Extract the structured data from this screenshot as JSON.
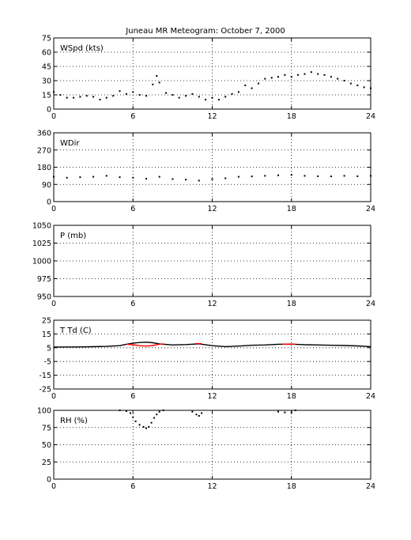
{
  "title": "Juneau MR Meteogram:    October  7, 2000",
  "chart_data": [
    {
      "type": "scatter",
      "label": "WSpd (kts)",
      "xlim": [
        0,
        24
      ],
      "ylim": [
        0,
        75
      ],
      "xticks": [
        0,
        6,
        12,
        18,
        24
      ],
      "yticks": [
        0,
        15,
        30,
        45,
        60,
        75
      ],
      "grid": true,
      "series": [
        {
          "color": "#000000",
          "points": [
            [
              0,
              18
            ],
            [
              0.5,
              15
            ],
            [
              1,
              12
            ],
            [
              1.5,
              12
            ],
            [
              2,
              13
            ],
            [
              2.5,
              14
            ],
            [
              3,
              13
            ],
            [
              3.5,
              10
            ],
            [
              4,
              12
            ],
            [
              4.5,
              14
            ],
            [
              5,
              19
            ],
            [
              5.5,
              16
            ],
            [
              6,
              18
            ],
            [
              6.5,
              15
            ],
            [
              7,
              14
            ],
            [
              7.5,
              26
            ],
            [
              7.8,
              35
            ],
            [
              8,
              28
            ],
            [
              8.5,
              17
            ],
            [
              9,
              15
            ],
            [
              9.5,
              12
            ],
            [
              10,
              14
            ],
            [
              10.5,
              16
            ],
            [
              11,
              13
            ],
            [
              11.5,
              10
            ],
            [
              12,
              12
            ],
            [
              12.5,
              10
            ],
            [
              13,
              13
            ],
            [
              13.5,
              16
            ],
            [
              14,
              18
            ],
            [
              14.5,
              25
            ],
            [
              15,
              22
            ],
            [
              15.5,
              27
            ],
            [
              16,
              32
            ],
            [
              16.5,
              33
            ],
            [
              17,
              34
            ],
            [
              17.5,
              36
            ],
            [
              18,
              34
            ],
            [
              18.5,
              36
            ],
            [
              19,
              37
            ],
            [
              19.5,
              39
            ],
            [
              20,
              37
            ],
            [
              20.5,
              36
            ],
            [
              21,
              34
            ],
            [
              21.5,
              32
            ],
            [
              22,
              30
            ],
            [
              22.5,
              27
            ],
            [
              23,
              25
            ],
            [
              23.5,
              23
            ],
            [
              24,
              22
            ]
          ]
        }
      ]
    },
    {
      "type": "scatter",
      "label": "WDir",
      "xlim": [
        0,
        24
      ],
      "ylim": [
        0,
        360
      ],
      "xticks": [
        0,
        6,
        12,
        18,
        24
      ],
      "yticks": [
        0,
        90,
        180,
        270,
        360
      ],
      "grid": true,
      "series": [
        {
          "color": "#000000",
          "points": [
            [
              0,
              130
            ],
            [
              1,
              125
            ],
            [
              2,
              128
            ],
            [
              3,
              130
            ],
            [
              4,
              135
            ],
            [
              5,
              128
            ],
            [
              6,
              125
            ],
            [
              7,
              120
            ],
            [
              8,
              130
            ],
            [
              9,
              118
            ],
            [
              10,
              115
            ],
            [
              11,
              110
            ],
            [
              12,
              118
            ],
            [
              13,
              122
            ],
            [
              14,
              130
            ],
            [
              15,
              132
            ],
            [
              16,
              135
            ],
            [
              17,
              138
            ],
            [
              18,
              140
            ],
            [
              19,
              135
            ],
            [
              20,
              133
            ],
            [
              21,
              132
            ],
            [
              22,
              135
            ],
            [
              23,
              133
            ],
            [
              24,
              135
            ]
          ]
        }
      ]
    },
    {
      "type": "scatter",
      "label": "P (mb)",
      "xlim": [
        0,
        24
      ],
      "ylim": [
        950,
        1050
      ],
      "xticks": [
        0,
        6,
        12,
        18,
        24
      ],
      "yticks": [
        950,
        975,
        1000,
        1025,
        1050
      ],
      "grid": true,
      "series": []
    },
    {
      "type": "line",
      "label": "T Td (C)",
      "xlim": [
        0,
        24
      ],
      "ylim": [
        -25,
        25
      ],
      "xticks": [
        0,
        6,
        12,
        18,
        24
      ],
      "yticks": [
        -25,
        -15,
        -5,
        5,
        15,
        25
      ],
      "grid": true,
      "series": [
        {
          "color": "#000000",
          "points": [
            [
              0,
              5.5
            ],
            [
              2,
              5.6
            ],
            [
              4,
              6.0
            ],
            [
              5,
              6.5
            ],
            [
              5.5,
              7.5
            ],
            [
              6,
              8.3
            ],
            [
              6.5,
              8.8
            ],
            [
              7,
              9.0
            ],
            [
              7.5,
              8.6
            ],
            [
              8,
              7.8
            ],
            [
              9,
              7.0
            ],
            [
              10,
              7.3
            ],
            [
              11,
              7.8
            ],
            [
              12,
              6.5
            ],
            [
              13,
              5.8
            ],
            [
              14,
              6.2
            ],
            [
              15,
              6.8
            ],
            [
              16,
              7.0
            ],
            [
              17,
              7.5
            ],
            [
              18,
              7.6
            ],
            [
              19,
              7.2
            ],
            [
              20,
              7.0
            ],
            [
              21,
              6.8
            ],
            [
              22,
              6.6
            ],
            [
              23,
              6.3
            ],
            [
              24,
              5.8
            ]
          ]
        },
        {
          "color": "#ff0000",
          "points": [
            [
              5.5,
              7.5
            ],
            [
              6,
              7.2
            ],
            [
              6.5,
              6.5
            ],
            [
              7,
              6.2
            ],
            [
              7.5,
              6.6
            ],
            [
              8,
              7.5
            ],
            [
              8.3,
              7.8
            ]
          ]
        },
        {
          "color": "#ff0000",
          "points": [
            [
              10.7,
              8.0
            ],
            [
              11.2,
              8.0
            ]
          ]
        },
        {
          "color": "#ff0000",
          "points": [
            [
              17.3,
              7.6
            ],
            [
              18.3,
              7.6
            ]
          ]
        }
      ]
    },
    {
      "type": "scatter",
      "label": "RH (%)",
      "xlim": [
        0,
        24
      ],
      "ylim": [
        0,
        100
      ],
      "xticks": [
        0,
        6,
        12,
        18,
        24
      ],
      "yticks": [
        0,
        25,
        50,
        75,
        100
      ],
      "grid": true,
      "series": [
        {
          "color": "#000000",
          "points": [
            [
              5,
              100
            ],
            [
              5.5,
              99
            ],
            [
              5.8,
              96
            ],
            [
              6,
              90
            ],
            [
              6.2,
              84
            ],
            [
              6.5,
              79
            ],
            [
              6.8,
              76
            ],
            [
              7,
              74
            ],
            [
              7.2,
              76
            ],
            [
              7.4,
              82
            ],
            [
              7.6,
              89
            ],
            [
              7.8,
              94
            ],
            [
              8,
              98
            ],
            [
              8.3,
              100
            ],
            [
              10.5,
              98
            ],
            [
              10.8,
              94
            ],
            [
              11,
              92
            ],
            [
              11.2,
              96
            ],
            [
              17,
              98
            ],
            [
              17.5,
              97
            ],
            [
              18,
              97
            ],
            [
              18.3,
              100
            ]
          ]
        }
      ]
    }
  ]
}
